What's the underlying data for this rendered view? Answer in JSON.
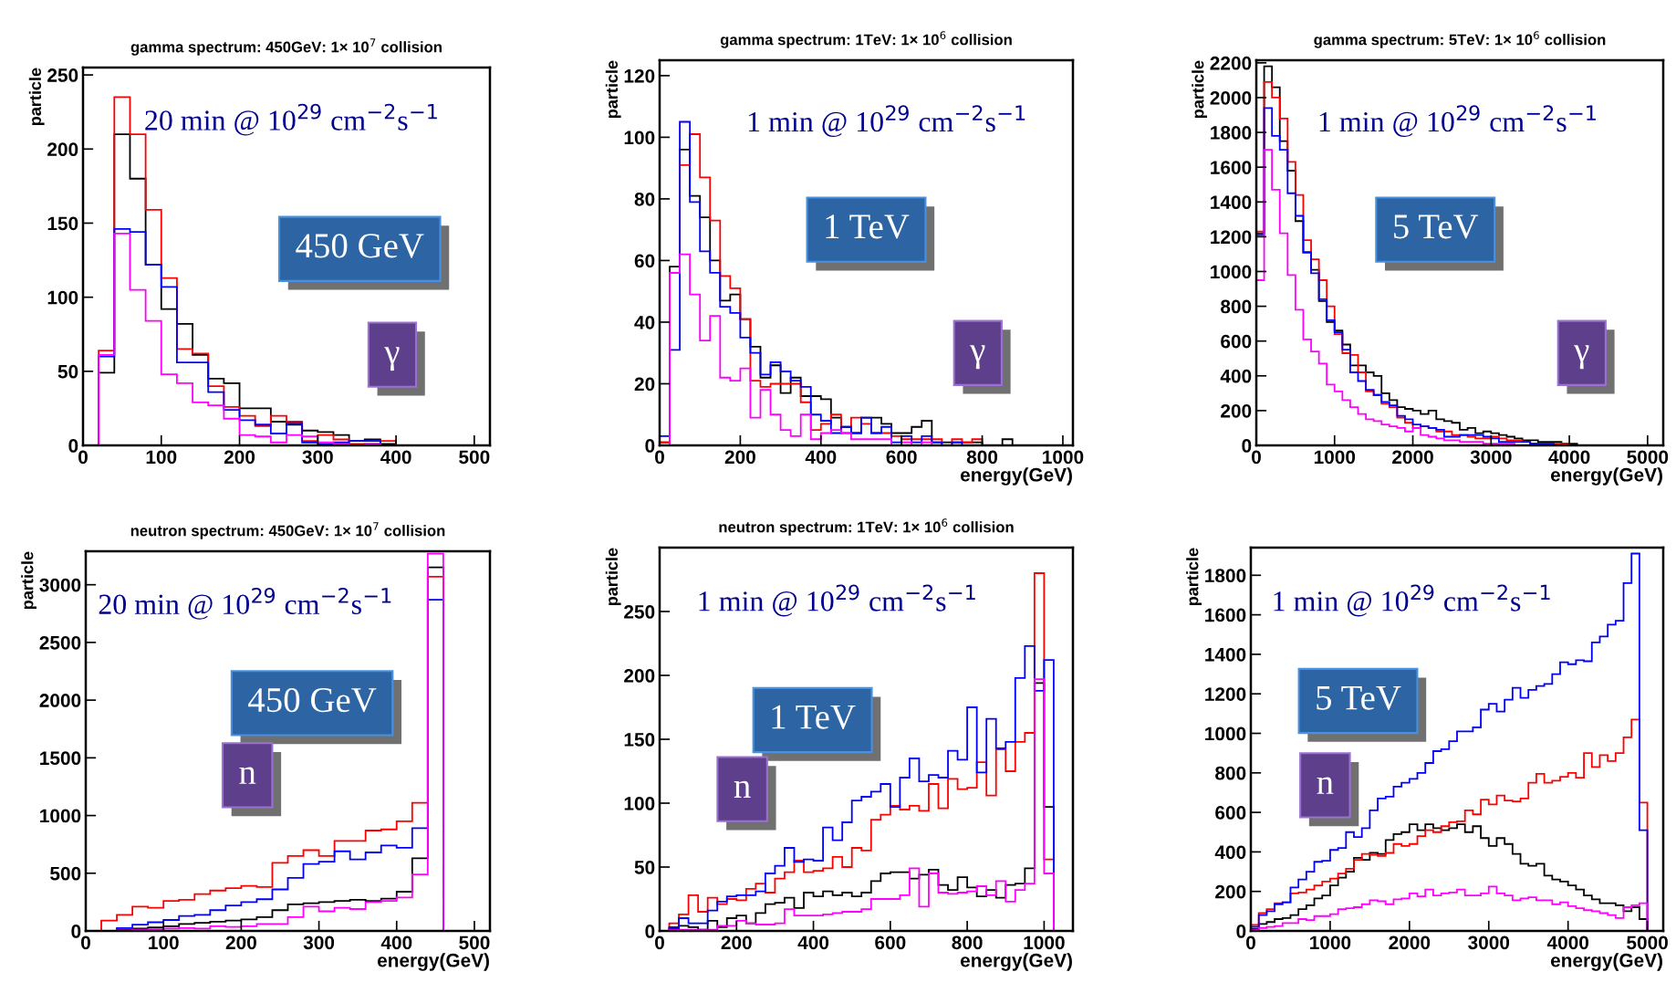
{
  "chart_data": [
    {
      "type": "histogram",
      "title": "gamma spectrum: 450GeV: 1× 10$^{7}$ collision",
      "ylabel": "particle",
      "bins": [
        0,
        20,
        40,
        60,
        80,
        100,
        120,
        140,
        160,
        180,
        200,
        220,
        240,
        260,
        280,
        300,
        320,
        340,
        360,
        380,
        400,
        420,
        440,
        460,
        480,
        500,
        520
      ],
      "series": [
        {
          "color": "#000000",
          "values": [
            0,
            49,
            210,
            180,
            122,
            92,
            82,
            61,
            45,
            42,
            25,
            25,
            16,
            14,
            10,
            9,
            7,
            3,
            4,
            1,
            0,
            0,
            0,
            0,
            0,
            0
          ]
        },
        {
          "color": "#ff0000",
          "values": [
            0,
            64,
            235,
            210,
            159,
            113,
            65,
            62,
            40,
            26,
            20,
            13,
            20,
            16,
            3,
            7,
            4,
            1,
            1,
            3,
            0,
            0,
            0,
            0,
            0,
            0
          ]
        },
        {
          "color": "#0000ff",
          "values": [
            0,
            60,
            146,
            144,
            122,
            107,
            56,
            56,
            36,
            24,
            17,
            14,
            8,
            15,
            2,
            1,
            2,
            3,
            3,
            0,
            0,
            0,
            0,
            0,
            0,
            0
          ]
        },
        {
          "color": "#ff00ff",
          "values": [
            0,
            61,
            143,
            105,
            84,
            48,
            42,
            29,
            27,
            18,
            7,
            6,
            2,
            7,
            6,
            2,
            1,
            0,
            1,
            0,
            0,
            0,
            0,
            0,
            0,
            0
          ]
        }
      ],
      "xlim": [
        0,
        520
      ],
      "ylim": [
        0,
        255
      ],
      "xticks": [
        0,
        100,
        200,
        300,
        400,
        500
      ],
      "yticks": [
        0,
        50,
        100,
        150,
        200,
        250
      ],
      "annotations": [
        "20 min @ 10$^{29}$ cm$^{−2}$s$^{−1}$",
        "450 GeV",
        "γ"
      ]
    },
    {
      "type": "histogram",
      "title": "gamma spectrum: 1TeV: 1× 10$^{6}$ collision",
      "xlabel": "energy(GeV)",
      "ylabel": "particle",
      "bins": [
        0,
        25,
        50,
        75,
        100,
        125,
        150,
        175,
        200,
        225,
        250,
        275,
        300,
        325,
        350,
        375,
        400,
        425,
        450,
        475,
        500,
        525,
        550,
        575,
        600,
        625,
        650,
        675,
        700,
        725,
        750,
        775,
        800,
        825,
        850,
        875,
        900,
        925,
        950,
        975,
        1000,
        1025
      ],
      "series": [
        {
          "color": "#000000",
          "values": [
            1,
            58,
            96,
            81,
            74,
            60,
            47,
            49,
            41,
            32,
            22,
            26,
            17,
            22,
            16,
            16,
            15,
            9,
            6,
            4,
            9,
            9,
            7,
            4,
            4,
            6,
            8,
            1,
            1,
            1,
            1,
            1,
            0,
            0,
            2,
            0,
            0,
            0,
            0,
            0,
            0
          ]
        },
        {
          "color": "#ff0000",
          "values": [
            1,
            56,
            91,
            101,
            87,
            73,
            55,
            51,
            41,
            21,
            19,
            20,
            20,
            20,
            14,
            5,
            7,
            10,
            4,
            9,
            7,
            4,
            4,
            3,
            2,
            2,
            2,
            2,
            0,
            2,
            1,
            2,
            0,
            0,
            0,
            0,
            0,
            0,
            0,
            0,
            0
          ]
        },
        {
          "color": "#0000ff",
          "values": [
            3,
            31,
            105,
            79,
            63,
            56,
            45,
            43,
            35,
            30,
            23,
            27,
            24,
            21,
            19,
            10,
            8,
            4,
            6,
            4,
            9,
            4,
            6,
            1,
            3,
            1,
            3,
            1,
            0,
            1,
            0,
            0,
            0,
            0,
            0,
            0,
            0,
            0,
            0,
            0,
            0
          ]
        },
        {
          "color": "#ff00ff",
          "values": [
            0,
            56,
            62,
            49,
            34,
            42,
            22,
            21,
            25,
            9,
            18,
            10,
            5,
            3,
            10,
            2,
            4,
            5,
            4,
            2,
            2,
            2,
            2,
            0,
            1,
            0,
            1,
            0,
            0,
            0,
            0,
            0,
            0,
            0,
            0,
            0,
            0,
            0,
            0,
            0,
            0
          ]
        }
      ],
      "xlim": [
        0,
        1025
      ],
      "ylim": [
        0,
        125
      ],
      "xticks": [
        0,
        200,
        400,
        600,
        800,
        1000
      ],
      "yticks": [
        0,
        20,
        40,
        60,
        80,
        100,
        120
      ],
      "annotations": [
        "1 min @ 10$^{29}$ cm$^{−2}$s$^{−1}$",
        "1 TeV",
        "γ"
      ]
    },
    {
      "type": "histogram",
      "title": "gamma spectrum: 5TeV: 1× 10$^{6}$ collision",
      "xlabel": "energy(GeV)",
      "ylabel": "particle",
      "bins": [
        0,
        100,
        200,
        300,
        400,
        500,
        600,
        700,
        800,
        900,
        1000,
        1100,
        1200,
        1300,
        1400,
        1500,
        1600,
        1700,
        1800,
        1900,
        2000,
        2100,
        2200,
        2300,
        2400,
        2500,
        2600,
        2700,
        2800,
        2900,
        3000,
        3100,
        3200,
        3300,
        3400,
        3500,
        3600,
        3700,
        3800,
        3900,
        4000,
        4100,
        4200,
        4300,
        4400,
        4500,
        4600,
        4700,
        4800,
        4900,
        5000,
        5100,
        5200
      ],
      "series": [
        {
          "color": "#000000",
          "values": [
            1220,
            2180,
            2060,
            1750,
            1580,
            1290,
            1110,
            1010,
            830,
            710,
            660,
            580,
            460,
            460,
            420,
            400,
            300,
            260,
            220,
            210,
            200,
            180,
            200,
            150,
            140,
            130,
            90,
            100,
            70,
            80,
            70,
            60,
            50,
            40,
            30,
            30,
            20,
            20,
            20,
            10,
            10,
            0,
            0,
            0,
            0,
            0,
            0,
            0,
            0,
            0,
            0,
            0
          ]
        },
        {
          "color": "#ff0000",
          "values": [
            1230,
            2090,
            2000,
            1880,
            1630,
            1440,
            1180,
            1070,
            950,
            800,
            640,
            530,
            520,
            420,
            310,
            290,
            240,
            220,
            160,
            130,
            100,
            110,
            100,
            80,
            80,
            60,
            60,
            50,
            40,
            40,
            50,
            40,
            30,
            30,
            20,
            10,
            10,
            10,
            10,
            10,
            0,
            0,
            0,
            0,
            0,
            0,
            0,
            0,
            0,
            0,
            0,
            0
          ]
        },
        {
          "color": "#0000ff",
          "values": [
            1210,
            1940,
            1780,
            1700,
            1450,
            1320,
            1110,
            990,
            840,
            720,
            650,
            550,
            420,
            370,
            320,
            290,
            250,
            230,
            170,
            150,
            120,
            110,
            100,
            90,
            50,
            50,
            60,
            60,
            60,
            50,
            40,
            20,
            20,
            20,
            20,
            10,
            10,
            10,
            0,
            0,
            0,
            0,
            0,
            0,
            0,
            0,
            0,
            0,
            0,
            0,
            0,
            0
          ]
        },
        {
          "color": "#ff00ff",
          "values": [
            950,
            1700,
            1470,
            1220,
            980,
            780,
            610,
            540,
            470,
            350,
            310,
            260,
            220,
            180,
            150,
            140,
            120,
            110,
            100,
            80,
            100,
            60,
            50,
            40,
            30,
            30,
            20,
            20,
            20,
            10,
            10,
            10,
            10,
            0,
            0,
            0,
            0,
            0,
            0,
            0,
            0,
            0,
            0,
            0,
            0,
            0,
            0,
            0,
            0,
            0,
            0,
            0
          ]
        }
      ],
      "xlim": [
        0,
        5200
      ],
      "ylim": [
        0,
        2215
      ],
      "xticks": [
        0,
        1000,
        2000,
        3000,
        4000,
        5000
      ],
      "yticks": [
        0,
        200,
        400,
        600,
        800,
        1000,
        1200,
        1400,
        1600,
        1800,
        2000,
        2200
      ],
      "annotations": [
        "1 min @ 10$^{29}$ cm$^{−2}$s$^{−1}$",
        "5 TeV",
        "γ"
      ]
    },
    {
      "type": "histogram",
      "title": "neutron spectrum: 450GeV: 1× 10$^{7}$ collision",
      "xlabel": "energy(GeV)",
      "ylabel": "particle",
      "bins": [
        0,
        20,
        40,
        60,
        80,
        100,
        120,
        140,
        160,
        180,
        200,
        220,
        240,
        260,
        280,
        300,
        320,
        340,
        360,
        380,
        400,
        420,
        440,
        460,
        480,
        500,
        520
      ],
      "series": [
        {
          "color": "#000000",
          "values": [
            0,
            0,
            10,
            20,
            30,
            40,
            60,
            70,
            80,
            90,
            100,
            120,
            180,
            230,
            240,
            250,
            260,
            270,
            260,
            280,
            340,
            630,
            3150,
            0,
            0,
            0
          ]
        },
        {
          "color": "#ff0000",
          "values": [
            0,
            90,
            140,
            210,
            200,
            260,
            270,
            320,
            350,
            370,
            390,
            380,
            590,
            650,
            700,
            650,
            780,
            780,
            870,
            880,
            950,
            1110,
            3070,
            0,
            0,
            0
          ]
        },
        {
          "color": "#0000ff",
          "values": [
            0,
            0,
            25,
            55,
            75,
            95,
            130,
            140,
            180,
            220,
            250,
            275,
            360,
            460,
            580,
            600,
            690,
            620,
            680,
            740,
            720,
            890,
            2870,
            0,
            0,
            0
          ]
        },
        {
          "color": "#ff00ff",
          "values": [
            0,
            0,
            5,
            10,
            15,
            20,
            25,
            20,
            40,
            35,
            40,
            60,
            60,
            120,
            210,
            170,
            200,
            190,
            250,
            260,
            290,
            490,
            3270,
            0,
            0,
            0
          ]
        }
      ],
      "xlim": [
        0,
        520
      ],
      "ylim": [
        0,
        3290
      ],
      "xticks": [
        0,
        100,
        200,
        300,
        400,
        500
      ],
      "yticks": [
        0,
        500,
        1000,
        1500,
        2000,
        2500,
        3000
      ],
      "annotations": [
        "20 min @ 10$^{29}$ cm$^{−2}$s$^{−1}$",
        "450 GeV",
        "n"
      ]
    },
    {
      "type": "histogram",
      "title": "neutron spectrum: 1TeV: 1× 10$^{6}$ collision",
      "xlabel": "energy(GeV)",
      "ylabel": "particle",
      "bins": [
        0,
        25,
        50,
        75,
        100,
        125,
        150,
        175,
        200,
        225,
        250,
        275,
        300,
        325,
        350,
        375,
        400,
        425,
        450,
        475,
        500,
        525,
        550,
        575,
        600,
        625,
        650,
        675,
        700,
        725,
        750,
        775,
        800,
        825,
        850,
        875,
        900,
        925,
        950,
        975,
        1000,
        1025,
        1050,
        1075
      ],
      "series": [
        {
          "color": "#000000",
          "values": [
            0,
            2,
            4,
            3,
            1,
            8,
            3,
            10,
            12,
            6,
            14,
            21,
            22,
            26,
            18,
            30,
            27,
            31,
            28,
            30,
            27,
            30,
            39,
            45,
            46,
            46,
            41,
            44,
            48,
            36,
            32,
            42,
            34,
            27,
            32,
            26,
            36,
            37,
            49,
            194,
            97,
            0,
            0
          ]
        },
        {
          "color": "#ff0000",
          "values": [
            0,
            6,
            13,
            28,
            15,
            26,
            21,
            25,
            24,
            33,
            37,
            30,
            41,
            46,
            55,
            46,
            47,
            49,
            58,
            50,
            65,
            63,
            87,
            91,
            98,
            95,
            98,
            94,
            115,
            96,
            119,
            111,
            112,
            132,
            106,
            142,
            125,
            148,
            155,
            280,
            56,
            0,
            0
          ]
        },
        {
          "color": "#0000ff",
          "values": [
            0,
            3,
            10,
            6,
            6,
            16,
            23,
            27,
            28,
            28,
            31,
            45,
            51,
            65,
            54,
            56,
            55,
            81,
            71,
            85,
            102,
            105,
            109,
            115,
            97,
            120,
            135,
            117,
            122,
            120,
            141,
            134,
            175,
            124,
            166,
            143,
            148,
            198,
            223,
            188,
            212,
            0,
            0
          ]
        },
        {
          "color": "#ff00ff",
          "values": [
            0,
            1,
            1,
            1,
            1,
            1,
            4,
            4,
            8,
            6,
            5,
            5,
            6,
            17,
            12,
            12,
            12,
            13,
            14,
            15,
            15,
            17,
            25,
            25,
            25,
            28,
            49,
            19,
            45,
            30,
            29,
            30,
            31,
            35,
            28,
            39,
            23,
            32,
            37,
            197,
            45,
            0,
            0
          ]
        }
      ],
      "xlim": [
        0,
        1075
      ],
      "ylim": [
        0,
        300
      ],
      "xticks": [
        0,
        200,
        400,
        600,
        800,
        1000
      ],
      "yticks": [
        0,
        50,
        100,
        150,
        200,
        250
      ],
      "annotations": [
        "1 min @ 10$^{29}$ cm$^{−2}$s$^{−1}$",
        "1 TeV",
        "n"
      ]
    },
    {
      "type": "histogram",
      "xlabel": "energy(GeV)",
      "ylabel": "particle",
      "bins": [
        0,
        100,
        200,
        300,
        400,
        500,
        600,
        700,
        800,
        900,
        1000,
        1100,
        1200,
        1300,
        1400,
        1500,
        1600,
        1700,
        1800,
        1900,
        2000,
        2100,
        2200,
        2300,
        2400,
        2500,
        2600,
        2700,
        2800,
        2900,
        3000,
        3100,
        3200,
        3300,
        3400,
        3500,
        3600,
        3700,
        3800,
        3900,
        4000,
        4100,
        4200,
        4300,
        4400,
        4500,
        4600,
        4700,
        4800,
        4900,
        5000,
        5100,
        5200
      ],
      "series": [
        {
          "color": "#000000",
          "values": [
            10,
            35,
            45,
            60,
            65,
            80,
            110,
            130,
            165,
            180,
            230,
            270,
            300,
            370,
            360,
            395,
            390,
            460,
            490,
            500,
            540,
            510,
            540,
            520,
            510,
            520,
            540,
            500,
            530,
            470,
            430,
            470,
            440,
            390,
            340,
            330,
            340,
            280,
            260,
            250,
            230,
            210,
            180,
            160,
            140,
            140,
            130,
            100,
            120,
            60,
            0,
            0
          ]
        },
        {
          "color": "#ff0000",
          "values": [
            30,
            90,
            110,
            140,
            145,
            190,
            195,
            210,
            230,
            250,
            265,
            290,
            315,
            360,
            390,
            385,
            380,
            395,
            440,
            430,
            440,
            480,
            510,
            500,
            530,
            550,
            555,
            610,
            590,
            665,
            640,
            685,
            660,
            655,
            670,
            750,
            795,
            750,
            760,
            780,
            800,
            775,
            900,
            830,
            890,
            860,
            900,
            980,
            1070,
            650,
            0,
            0
          ]
        },
        {
          "color": "#0000ff",
          "values": [
            20,
            80,
            100,
            135,
            145,
            220,
            260,
            300,
            350,
            355,
            410,
            420,
            500,
            475,
            520,
            610,
            670,
            680,
            730,
            750,
            770,
            800,
            850,
            910,
            920,
            960,
            1010,
            1010,
            1030,
            1120,
            1150,
            1110,
            1170,
            1230,
            1180,
            1220,
            1240,
            1250,
            1300,
            1360,
            1350,
            1370,
            1365,
            1460,
            1490,
            1550,
            1570,
            1760,
            1910,
            510,
            0,
            0
          ]
        },
        {
          "color": "#ff00ff",
          "values": [
            5,
            15,
            20,
            25,
            40,
            40,
            60,
            55,
            75,
            75,
            85,
            110,
            115,
            120,
            135,
            155,
            150,
            135,
            160,
            165,
            190,
            175,
            210,
            180,
            190,
            195,
            210,
            180,
            180,
            190,
            225,
            190,
            180,
            155,
            165,
            170,
            155,
            155,
            135,
            145,
            125,
            115,
            105,
            100,
            90,
            80,
            65,
            120,
            130,
            140,
            0,
            0
          ]
        }
      ],
      "xlim": [
        0,
        5200
      ],
      "ylim": [
        0,
        1940
      ],
      "xticks": [
        0,
        1000,
        2000,
        3000,
        4000,
        5000
      ],
      "yticks": [
        0,
        200,
        400,
        600,
        800,
        1000,
        1200,
        1400,
        1600,
        1800
      ],
      "annotations": [
        "1 min @ 10$^{29}$ cm$^{−2}$s$^{−1}$",
        "5 TeV",
        "n"
      ]
    }
  ]
}
